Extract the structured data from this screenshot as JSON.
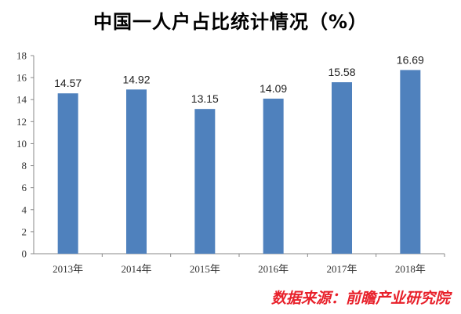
{
  "chart_data": {
    "type": "bar",
    "title": "中国一人户占比统计情况（%）",
    "categories": [
      "2013年",
      "2014年",
      "2015年",
      "2016年",
      "2017年",
      "2018年"
    ],
    "values": [
      14.57,
      14.92,
      13.15,
      14.09,
      15.58,
      16.69
    ],
    "data_labels": [
      "14.57",
      "14.92",
      "13.15",
      "14.09",
      "15.58",
      "16.69"
    ],
    "ylim": [
      0,
      18
    ],
    "yticks": [
      0,
      2,
      4,
      6,
      8,
      10,
      12,
      14,
      16,
      18
    ],
    "grid": false,
    "legend": "none",
    "bar_color": "#4f81bd"
  },
  "source": "数据来源：前瞻产业研究院"
}
